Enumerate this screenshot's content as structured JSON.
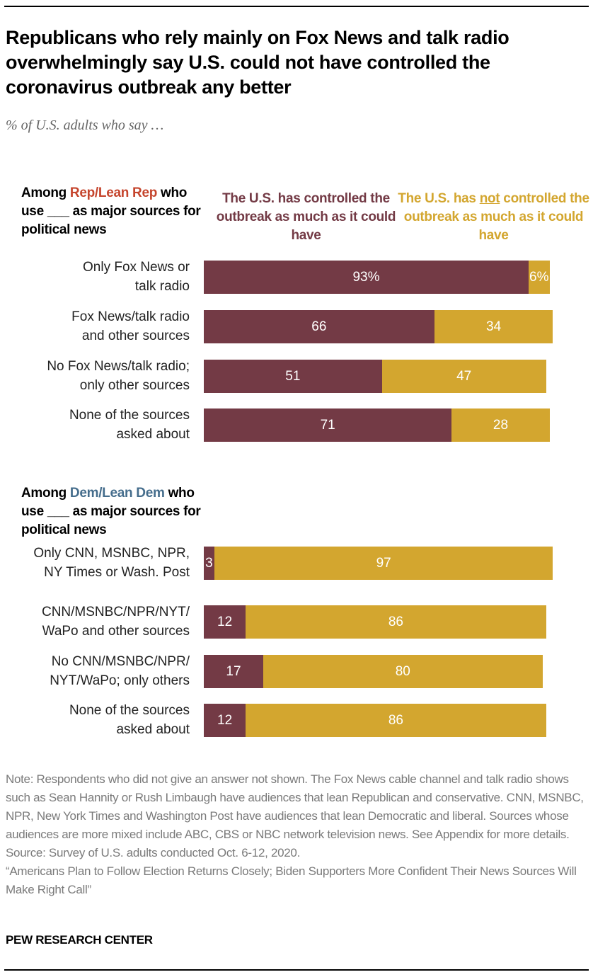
{
  "title": "Republicans who rely mainly on Fox News and talk radio overwhelmingly say U.S. could not have controlled the coronavirus outbreak any better",
  "subtitle": "% of U.S. adults who say …",
  "colors": {
    "controlled": "#733a45",
    "not_controlled": "#d3a62f",
    "rep": "#c5452d",
    "dem": "#456d8c"
  },
  "legend": {
    "controlled": "The U.S. has controlled the outbreak as much as it could have",
    "not_prefix": "The U.S. has ",
    "not_word": "not",
    "not_suffix": " controlled the outbreak as much as it could have"
  },
  "groups": {
    "rep": {
      "prefix": "Among ",
      "party": "Rep/Lean Rep",
      "rest": "who use ___ as major sources for political news"
    },
    "dem": {
      "prefix": "Among ",
      "party": "Dem/Lean Dem",
      "rest": "who use ___ as major sources for political news"
    }
  },
  "chart_data": {
    "type": "bar",
    "orientation": "horizontal-stacked",
    "title": "Republicans who rely mainly on Fox News and talk radio overwhelmingly say U.S. could not have controlled the coronavirus outbreak any better",
    "series_names": [
      "The U.S. has controlled the outbreak as much as it could have",
      "The U.S. has not controlled the outbreak as much as it could have"
    ],
    "xlim": [
      0,
      100
    ],
    "rows": [
      {
        "group": "rep",
        "label": [
          "Only Fox News or",
          "talk radio"
        ],
        "controlled": 93,
        "not": 6,
        "labels": [
          "93%",
          "6%"
        ]
      },
      {
        "group": "rep",
        "label": [
          "Fox News/talk radio",
          "and other sources"
        ],
        "controlled": 66,
        "not": 34,
        "labels": [
          "66",
          "34"
        ]
      },
      {
        "group": "rep",
        "label": [
          "No Fox News/talk radio;",
          "only other sources"
        ],
        "controlled": 51,
        "not": 47,
        "labels": [
          "51",
          "47"
        ]
      },
      {
        "group": "rep",
        "label": [
          "None of the sources",
          "asked about"
        ],
        "controlled": 71,
        "not": 28,
        "labels": [
          "71",
          "28"
        ]
      },
      {
        "group": "dem",
        "label": [
          "Only CNN, MSNBC, NPR,",
          "NY Times or Wash. Post"
        ],
        "controlled": 3,
        "not": 97,
        "labels": [
          "3",
          "97"
        ]
      },
      {
        "group": "dem",
        "label": [
          "CNN/MSNBC/NPR/NYT/",
          "WaPo and other sources"
        ],
        "controlled": 12,
        "not": 86,
        "labels": [
          "12",
          "86"
        ]
      },
      {
        "group": "dem",
        "label": [
          "No CNN/MSNBC/NPR/",
          "NYT/WaPo; only others"
        ],
        "controlled": 17,
        "not": 80,
        "labels": [
          "17",
          "80"
        ]
      },
      {
        "group": "dem",
        "label": [
          "None of the sources",
          "asked about"
        ],
        "controlled": 12,
        "not": 86,
        "labels": [
          "12",
          "86"
        ]
      }
    ]
  },
  "notes": [
    "Note: Respondents who did not give an answer not shown. The Fox News cable channel and talk radio shows such as Sean Hannity or Rush Limbaugh have audiences that lean Republican and conservative. CNN, MSNBC, NPR, New York Times and Washington Post have audiences that lean Democratic and liberal. Sources whose audiences are more mixed include ABC, CBS or NBC network television news. See Appendix for more details.",
    "Source: Survey of U.S. adults conducted Oct. 6-12, 2020.",
    "“Americans Plan to Follow Election Returns Closely; Biden Supporters More Confident Their News Sources Will Make Right Call”"
  ],
  "brand": "PEW RESEARCH CENTER"
}
